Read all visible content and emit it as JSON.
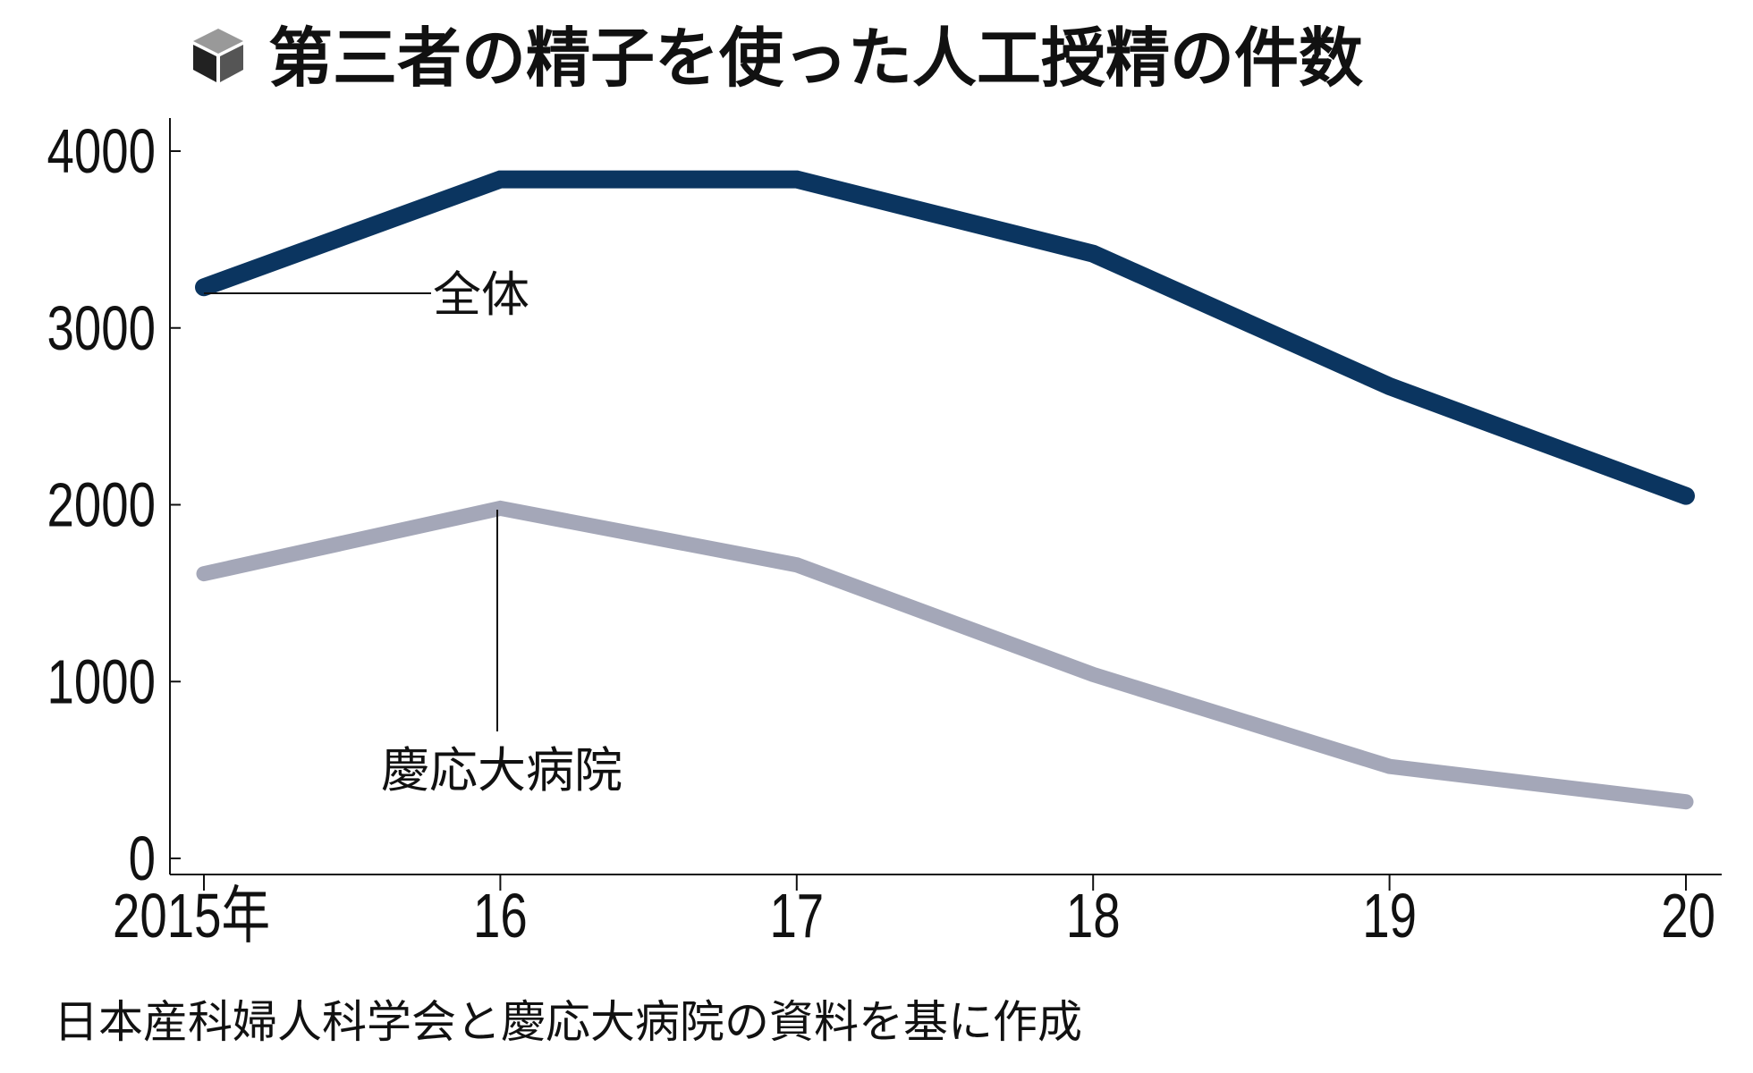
{
  "chart_data": {
    "type": "line",
    "title": "第三者の精子を使った人工授精の件数",
    "categories": [
      "2015年",
      "16",
      "17",
      "18",
      "19",
      "20"
    ],
    "series": [
      {
        "name": "全体",
        "color": "#0b3560",
        "values": [
          3230,
          3840,
          3840,
          3420,
          2670,
          2050
        ]
      },
      {
        "name": "慶応大病院",
        "color": "#a4a7b8",
        "values": [
          1610,
          1980,
          1660,
          1040,
          520,
          320
        ]
      }
    ],
    "yticks": [
      "0",
      "1000",
      "2000",
      "3000",
      "4000"
    ],
    "ylim": [
      0,
      4000
    ],
    "xlabel": "",
    "ylabel": "",
    "grid": false,
    "source": "日本産科婦人科学会と慶応大病院の資料を基に作成"
  }
}
